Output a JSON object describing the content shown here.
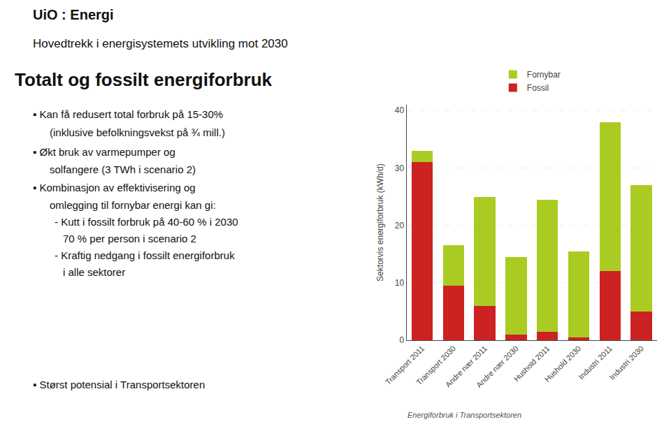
{
  "chart_data": {
    "type": "bar",
    "stacked": true,
    "title": "Totalt og fossilt energiforbruk",
    "subtitle": "Hovedtrekk i energisystemets utvikling mot 2030",
    "categories": [
      "Transport 2011",
      "Transport 2030",
      "Andre nær 2011",
      "Andre nær 2030",
      "Hushold 2011",
      "Hushold 2030",
      "Industri 2011",
      "Industri 2030"
    ],
    "series": [
      {
        "name": "Fossil",
        "color": "#cc2222",
        "values": [
          31.0,
          9.5,
          6.0,
          1.0,
          1.5,
          0.5,
          12.0,
          5.0
        ]
      },
      {
        "name": "Fornybar",
        "color": "#aacc22",
        "values": [
          2.0,
          7.0,
          19.0,
          13.5,
          23.0,
          15.0,
          26.0,
          22.0
        ]
      }
    ],
    "ylabel": "Sektorvis energiforbruk (kWh/d)",
    "ylim": [
      0,
      41
    ],
    "yticks": [
      0,
      10,
      20,
      30,
      40
    ],
    "grid": true,
    "legend": "upper center",
    "annotations": [
      "UiO : Energi",
      "▪ Kan få redusert total forbruk på 15-30%",
      "(inklusive befolkningsvekst på ¾ mill.)",
      "▪ Økt bruk av varmepumper og",
      "solfangere (3 TWh i scenario 2)",
      "▪ Kombinasjon av effektivisering og",
      "omlegging til fornybar energi kan gi:",
      "- Kutt i fossilt forbruk på 40-60 % i 2030",
      "70 % per person i scenario 2",
      "- Kraftig nedgang i fossilt energiforbruk",
      "i alle sektorer",
      "▪ Størst potensial i Transportsektoren",
      "Energiforbruk i Transportsektoren"
    ]
  }
}
